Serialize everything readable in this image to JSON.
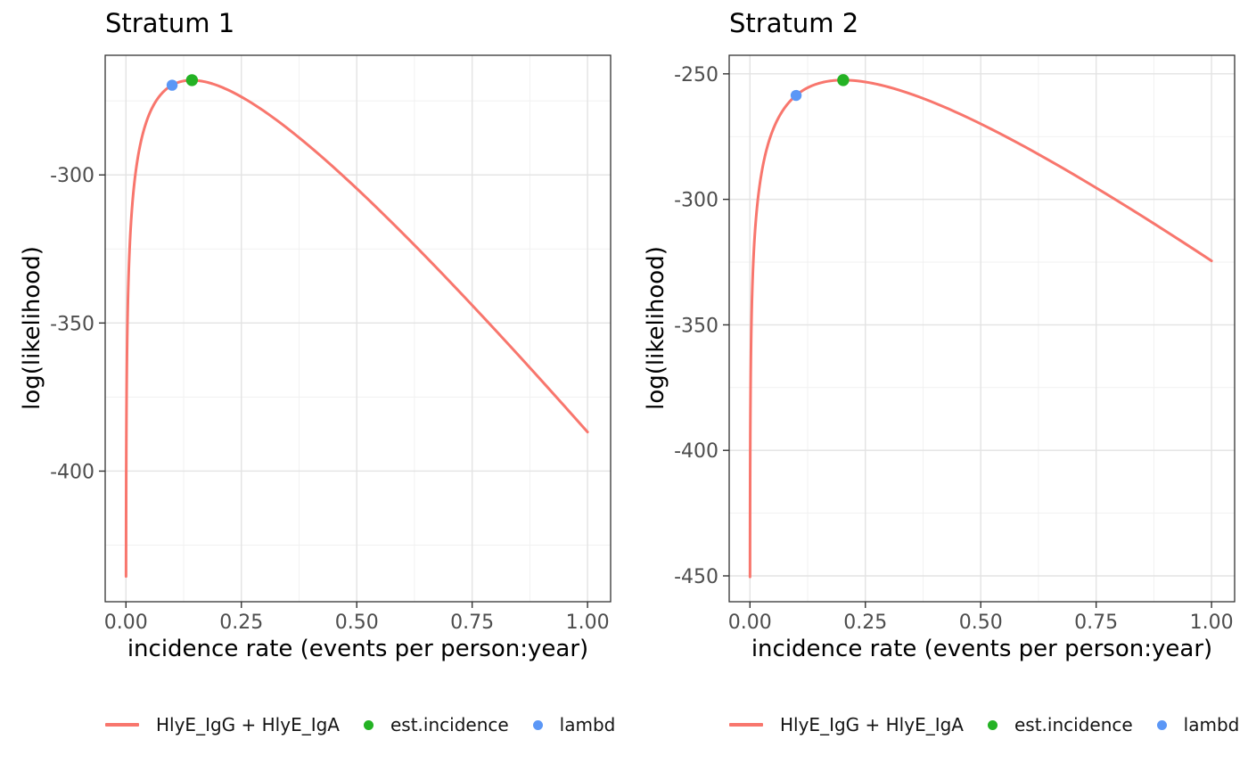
{
  "page": {
    "background": "#FFFFFF",
    "text_color": "#000000",
    "tick_label_color": "#4D4D4D",
    "grid_major_color": "#E3E3E3",
    "grid_minor_color": "#F1F1F1",
    "panel_border_color": "#333333",
    "tick_mark_color": "#333333"
  },
  "chart_data": [
    {
      "type": "line",
      "title": "Stratum 1",
      "xlabel": "incidence rate (events per person:year)",
      "ylabel": "log(likelihood)",
      "xlim": [
        -0.045,
        1.05
      ],
      "ylim": [
        -444.1,
        -259.6
      ],
      "grid": true,
      "legend_position": "bottom",
      "x_ticks": {
        "values": [
          0,
          0.25,
          0.5,
          0.75,
          1
        ],
        "labels": [
          "0.00",
          "0.25",
          "0.50",
          "0.75",
          "1.00"
        ]
      },
      "y_ticks": {
        "values": [
          -300,
          -350,
          -400
        ],
        "labels": [
          "-300",
          "-350",
          "-400"
        ]
      },
      "x_minor": [
        0.125,
        0.375,
        0.625,
        0.875
      ],
      "y_minor": [
        -275,
        -325,
        -375,
        -425
      ],
      "series": [
        {
          "name": "HlyE_IgG + HlyE_IgA",
          "type": "line",
          "color": "#F8766D",
          "stroke_width": 3,
          "model": "y = a*ln(x) + b*x + c",
          "params": {
            "a": 29.22,
            "b": -204.9,
            "c": -181.9
          },
          "x_range": [
            0.00017,
            1.0
          ],
          "points": [
            [
              0.00017,
              -435.5
            ],
            [
              0.0003,
              -419.0
            ],
            [
              0.0006,
              -398.8
            ],
            [
              0.001,
              -383.9
            ],
            [
              0.002,
              -363.9
            ],
            [
              0.004,
              -344.0
            ],
            [
              0.008,
              -324.6
            ],
            [
              0.015,
              -307.7
            ],
            [
              0.025,
              -294.8
            ],
            [
              0.04,
              -284.2
            ],
            [
              0.06,
              -276.4
            ],
            [
              0.08,
              -272.1
            ],
            [
              0.1,
              -269.7
            ],
            [
              0.12,
              -268.4
            ],
            [
              0.143,
              -268.0
            ],
            [
              0.17,
              -268.5
            ],
            [
              0.2,
              -269.9
            ],
            [
              0.25,
              -273.6
            ],
            [
              0.3,
              -278.6
            ],
            [
              0.4,
              -290.6
            ],
            [
              0.5,
              -304.6
            ],
            [
              0.6,
              -319.8
            ],
            [
              0.7,
              -335.8
            ],
            [
              0.8,
              -352.3
            ],
            [
              0.9,
              -369.4
            ],
            [
              1.0,
              -386.8
            ]
          ]
        },
        {
          "name": "est.incidence",
          "type": "point",
          "color": "#24B224",
          "x": 0.143,
          "y": -268.0,
          "radius": 6.7
        },
        {
          "name": "lambd",
          "type": "point",
          "color": "#5B97F6",
          "x": 0.1,
          "y": -269.7,
          "radius": 6.2
        }
      ],
      "legend": {
        "items": [
          {
            "label": "HlyE_IgG + HlyE_IgA",
            "swatch": "line",
            "color": "#F8766D"
          },
          {
            "label": "est.incidence",
            "swatch": "point",
            "color": "#24B224"
          },
          {
            "label": "lambd",
            "swatch": "point",
            "color": "#5B97F6"
          }
        ]
      }
    },
    {
      "type": "line",
      "title": "Stratum 2",
      "xlabel": "incidence rate (events per person:year)",
      "ylabel": "log(likelihood)",
      "xlim": [
        -0.045,
        1.05
      ],
      "ylim": [
        -460.3,
        -242.6
      ],
      "grid": true,
      "legend_position": "bottom",
      "x_ticks": {
        "values": [
          0,
          0.25,
          0.5,
          0.75,
          1
        ],
        "labels": [
          "0.00",
          "0.25",
          "0.50",
          "0.75",
          "1.00"
        ]
      },
      "y_ticks": {
        "values": [
          -250,
          -300,
          -350,
          -400,
          -450
        ],
        "labels": [
          "-250",
          "-300",
          "-350",
          "-400",
          "-450"
        ]
      },
      "x_minor": [
        0.125,
        0.375,
        0.625,
        0.875
      ],
      "y_minor": [
        -275,
        -325,
        -375,
        -425
      ],
      "series": [
        {
          "name": "HlyE_IgG + HlyE_IgA",
          "type": "line",
          "color": "#F8766D",
          "stroke_width": 3,
          "model": "y = a*ln(x) + b*x + c",
          "params": {
            "a": 30.62,
            "b": -151.6,
            "c": -172.9
          },
          "x_range": [
            0.000116,
            1.0
          ],
          "points": [
            [
              0.000116,
              -450.4
            ],
            [
              0.0002,
              -433.7
            ],
            [
              0.0004,
              -412.5
            ],
            [
              0.0008,
              -391.3
            ],
            [
              0.0015,
              -372.2
            ],
            [
              0.003,
              -351.2
            ],
            [
              0.006,
              -330.4
            ],
            [
              0.012,
              -310.1
            ],
            [
              0.02,
              -295.7
            ],
            [
              0.035,
              -280.8
            ],
            [
              0.055,
              -270.1
            ],
            [
              0.08,
              -262.3
            ],
            [
              0.1,
              -258.6
            ],
            [
              0.13,
              -255.1
            ],
            [
              0.16,
              -253.3
            ],
            [
              0.202,
              -252.5
            ],
            [
              0.25,
              -253.2
            ],
            [
              0.3,
              -255.3
            ],
            [
              0.4,
              -261.6
            ],
            [
              0.5,
              -269.9
            ],
            [
              0.6,
              -279.5
            ],
            [
              0.7,
              -289.9
            ],
            [
              0.8,
              -301.0
            ],
            [
              0.9,
              -312.5
            ],
            [
              1.0,
              -324.5
            ]
          ]
        },
        {
          "name": "est.incidence",
          "type": "point",
          "color": "#24B224",
          "x": 0.202,
          "y": -252.5,
          "radius": 6.7
        },
        {
          "name": "lambd",
          "type": "point",
          "color": "#5B97F6",
          "x": 0.1,
          "y": -258.6,
          "radius": 6.2
        }
      ],
      "legend": {
        "items": [
          {
            "label": "HlyE_IgG + HlyE_IgA",
            "swatch": "line",
            "color": "#F8766D"
          },
          {
            "label": "est.incidence",
            "swatch": "point",
            "color": "#24B224"
          },
          {
            "label": "lambd",
            "swatch": "point",
            "color": "#5B97F6"
          }
        ]
      }
    }
  ]
}
